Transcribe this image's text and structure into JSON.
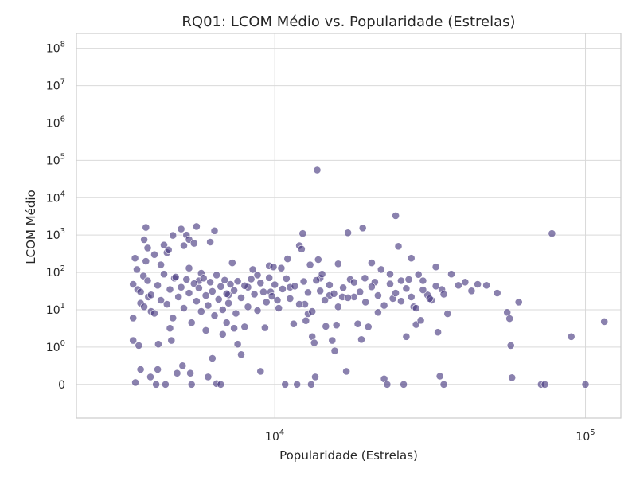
{
  "chart_data": {
    "type": "scatter",
    "title": "RQ01: LCOM Médio vs. Popularidade (Estrelas)",
    "xlabel": "Popularidade (Estrelas)",
    "ylabel": "LCOM Médio",
    "x_scale": "log",
    "y_scale": "symlog",
    "xlim": [
      2300,
      130000
    ],
    "ylim": [
      -0.9,
      250000000
    ],
    "x_ticks": [
      {
        "value": 10000,
        "base": "10",
        "exp": "4"
      },
      {
        "value": 100000,
        "base": "10",
        "exp": "5"
      }
    ],
    "y_ticks": [
      {
        "value": 0,
        "text": "0"
      },
      {
        "value": 1,
        "base": "10",
        "exp": "0"
      },
      {
        "value": 10,
        "base": "10",
        "exp": "1"
      },
      {
        "value": 100,
        "base": "10",
        "exp": "2"
      },
      {
        "value": 1000,
        "base": "10",
        "exp": "3"
      },
      {
        "value": 10000,
        "base": "10",
        "exp": "4"
      },
      {
        "value": 100000,
        "base": "10",
        "exp": "5"
      },
      {
        "value": 1000000,
        "base": "10",
        "exp": "6"
      },
      {
        "value": 10000000,
        "base": "10",
        "exp": "7"
      },
      {
        "value": 100000000,
        "base": "10",
        "exp": "8"
      }
    ],
    "grid": true,
    "marker_color": "#4c3d82",
    "marker_opacity": 0.65,
    "series": [
      {
        "points": [
          [
            3500,
            48
          ],
          [
            3500,
            6
          ],
          [
            3500,
            1.5
          ],
          [
            3550,
            240
          ],
          [
            3560,
            0.05
          ],
          [
            3600,
            120
          ],
          [
            3650,
            1.1
          ],
          [
            3700,
            0.4
          ],
          [
            3620,
            35
          ],
          [
            3700,
            15
          ],
          [
            3780,
            80
          ],
          [
            3800,
            750
          ],
          [
            3850,
            1600
          ],
          [
            3900,
            450
          ],
          [
            3850,
            200
          ],
          [
            3920,
            22
          ],
          [
            3980,
            0.2
          ],
          [
            4000,
            9
          ],
          [
            4100,
            300
          ],
          [
            4150,
            0
          ],
          [
            4200,
            0.4
          ],
          [
            4220,
            1.2
          ],
          [
            4300,
            160
          ],
          [
            4400,
            540
          ],
          [
            4450,
            0
          ],
          [
            4500,
            340
          ],
          [
            4550,
            400
          ],
          [
            4600,
            3.2
          ],
          [
            4650,
            1.5
          ],
          [
            4700,
            980
          ],
          [
            4750,
            70
          ],
          [
            4850,
            0.3
          ],
          [
            5000,
            1450
          ],
          [
            5050,
            0.5
          ],
          [
            5100,
            520
          ],
          [
            5200,
            1000
          ],
          [
            5300,
            760
          ],
          [
            5350,
            0.3
          ],
          [
            5400,
            0
          ],
          [
            5300,
            130
          ],
          [
            5600,
            1700
          ],
          [
            5500,
            600
          ],
          [
            5700,
            60
          ],
          [
            5800,
            95
          ],
          [
            6000,
            2.8
          ],
          [
            6100,
            0.2
          ],
          [
            6200,
            650
          ],
          [
            6300,
            0.7
          ],
          [
            6400,
            1300
          ],
          [
            6500,
            0.02
          ],
          [
            6700,
            0
          ],
          [
            6800,
            2.2
          ],
          [
            7000,
            4.5
          ],
          [
            7100,
            25
          ],
          [
            7300,
            180
          ],
          [
            7400,
            3.2
          ],
          [
            7600,
            1.2
          ],
          [
            7800,
            0.8
          ],
          [
            8000,
            3.5
          ],
          [
            8200,
            40
          ],
          [
            8500,
            120
          ],
          [
            8800,
            85
          ],
          [
            9000,
            0.35
          ],
          [
            9300,
            3.3
          ],
          [
            9600,
            150
          ],
          [
            9700,
            30
          ],
          [
            9900,
            140
          ],
          [
            10200,
            18
          ],
          [
            10500,
            130
          ],
          [
            10800,
            0
          ],
          [
            11000,
            230
          ],
          [
            11200,
            40
          ],
          [
            11500,
            4.2
          ],
          [
            11800,
            0
          ],
          [
            12000,
            520
          ],
          [
            12200,
            420
          ],
          [
            12300,
            1100
          ],
          [
            12500,
            14
          ],
          [
            12600,
            5.1
          ],
          [
            12800,
            7.8
          ],
          [
            13000,
            160
          ],
          [
            13200,
            1.9
          ],
          [
            13100,
            0
          ],
          [
            13400,
            1.3
          ],
          [
            13500,
            0.2
          ],
          [
            13700,
            55000
          ],
          [
            13800,
            220
          ],
          [
            14000,
            70
          ],
          [
            14200,
            90
          ],
          [
            14600,
            3.6
          ],
          [
            15000,
            24
          ],
          [
            15300,
            1.5
          ],
          [
            15600,
            0.9
          ],
          [
            15800,
            3.9
          ],
          [
            16000,
            170
          ],
          [
            16500,
            22
          ],
          [
            17000,
            0.35
          ],
          [
            17200,
            1150
          ],
          [
            17500,
            65
          ],
          [
            18000,
            22
          ],
          [
            18500,
            4.2
          ],
          [
            19000,
            1.6
          ],
          [
            19200,
            1550
          ],
          [
            19500,
            70
          ],
          [
            20000,
            3.5
          ],
          [
            20500,
            180
          ],
          [
            21000,
            55
          ],
          [
            21500,
            8.5
          ],
          [
            22000,
            120
          ],
          [
            22500,
            0.15
          ],
          [
            23000,
            0
          ],
          [
            23500,
            90
          ],
          [
            24000,
            20
          ],
          [
            24500,
            3300
          ],
          [
            25000,
            500
          ],
          [
            25500,
            60
          ],
          [
            26000,
            0
          ],
          [
            26500,
            1.9
          ],
          [
            27000,
            65
          ],
          [
            27500,
            240
          ],
          [
            28000,
            12
          ],
          [
            28500,
            4.0
          ],
          [
            29000,
            88
          ],
          [
            29500,
            5.2
          ],
          [
            30000,
            60
          ],
          [
            31000,
            25
          ],
          [
            32000,
            18
          ],
          [
            33000,
            140
          ],
          [
            33500,
            2.5
          ],
          [
            34000,
            0.22
          ],
          [
            34500,
            35
          ],
          [
            35000,
            0
          ],
          [
            36000,
            7.8
          ],
          [
            37000,
            90
          ],
          [
            39000,
            45
          ],
          [
            41000,
            55
          ],
          [
            43000,
            32
          ],
          [
            45000,
            48
          ],
          [
            48000,
            45
          ],
          [
            52000,
            28
          ],
          [
            56000,
            8.5
          ],
          [
            57000,
            5.8
          ],
          [
            57500,
            1.1
          ],
          [
            58000,
            0.18
          ],
          [
            61000,
            16
          ],
          [
            72000,
            0
          ],
          [
            74000,
            0
          ],
          [
            78000,
            1100
          ],
          [
            90000,
            1.9
          ],
          [
            100000,
            0
          ],
          [
            115000,
            4.8
          ],
          [
            3700,
            30
          ],
          [
            3800,
            12
          ],
          [
            3900,
            60
          ],
          [
            4000,
            25
          ],
          [
            4100,
            8
          ],
          [
            4200,
            45
          ],
          [
            4300,
            18
          ],
          [
            4400,
            90
          ],
          [
            4500,
            14
          ],
          [
            4600,
            35
          ],
          [
            4700,
            6
          ],
          [
            4800,
            75
          ],
          [
            4900,
            22
          ],
          [
            5000,
            40
          ],
          [
            5100,
            11
          ],
          [
            5200,
            65
          ],
          [
            5300,
            28
          ],
          [
            5400,
            4.5
          ],
          [
            5500,
            50
          ],
          [
            5600,
            17
          ],
          [
            5700,
            38
          ],
          [
            5800,
            9
          ],
          [
            5900,
            70
          ],
          [
            6000,
            24
          ],
          [
            6100,
            13
          ],
          [
            6200,
            55
          ],
          [
            6300,
            31
          ],
          [
            6400,
            7
          ],
          [
            6500,
            85
          ],
          [
            6600,
            19
          ],
          [
            6700,
            42
          ],
          [
            6800,
            10
          ],
          [
            6900,
            62
          ],
          [
            7000,
            27
          ],
          [
            7100,
            15
          ],
          [
            7200,
            48
          ],
          [
            7400,
            33
          ],
          [
            7500,
            8
          ],
          [
            7600,
            58
          ],
          [
            7800,
            21
          ],
          [
            8000,
            44
          ],
          [
            8200,
            12
          ],
          [
            8400,
            66
          ],
          [
            8600,
            26
          ],
          [
            8800,
            9.5
          ],
          [
            9000,
            52
          ],
          [
            9200,
            30
          ],
          [
            9400,
            16
          ],
          [
            9600,
            72
          ],
          [
            9800,
            23
          ],
          [
            10000,
            47
          ],
          [
            10300,
            11
          ],
          [
            10600,
            36
          ],
          [
            10900,
            68
          ],
          [
            11200,
            20
          ],
          [
            11600,
            43
          ],
          [
            12000,
            14
          ],
          [
            12400,
            57
          ],
          [
            12800,
            29
          ],
          [
            13200,
            9
          ],
          [
            13600,
            61
          ],
          [
            14000,
            32
          ],
          [
            14500,
            18
          ],
          [
            15000,
            46
          ],
          [
            15500,
            27
          ],
          [
            16000,
            12
          ],
          [
            16600,
            39
          ],
          [
            17200,
            21
          ],
          [
            18000,
            54
          ],
          [
            18800,
            30
          ],
          [
            19600,
            16
          ],
          [
            20500,
            41
          ],
          [
            21500,
            24
          ],
          [
            22500,
            13
          ],
          [
            23500,
            49
          ],
          [
            24500,
            28
          ],
          [
            25500,
            17
          ],
          [
            26500,
            37
          ],
          [
            27500,
            22
          ],
          [
            28500,
            11
          ],
          [
            30000,
            34
          ],
          [
            31500,
            20
          ],
          [
            33000,
            43
          ],
          [
            35000,
            26
          ]
        ]
      }
    ]
  }
}
